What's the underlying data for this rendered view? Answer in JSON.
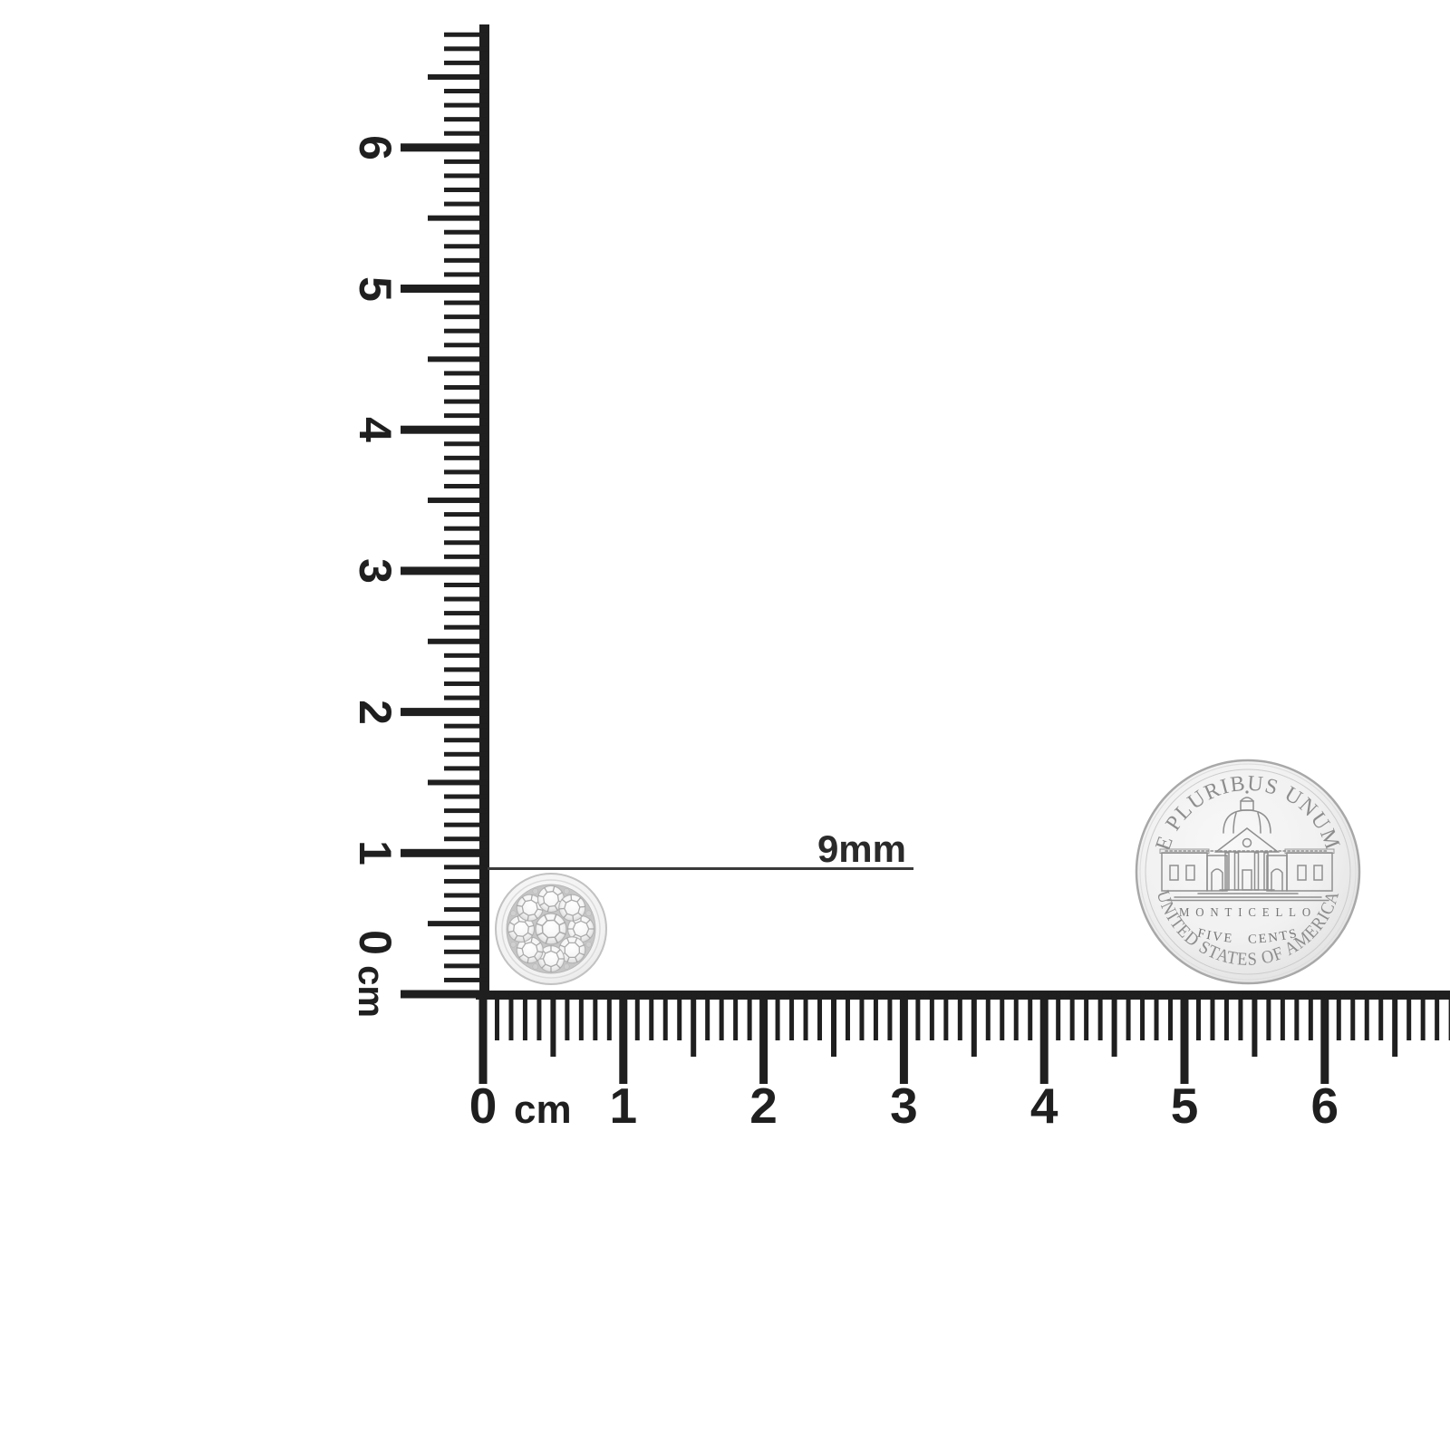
{
  "page": {
    "background": "#ffffff"
  },
  "rulers": {
    "vertical": {
      "labels": [
        "6",
        "5",
        "4",
        "3",
        "2",
        "1",
        "0"
      ],
      "unit": "cm"
    },
    "horizontal": {
      "labels": [
        "0",
        "1",
        "2",
        "3",
        "4",
        "5",
        "6"
      ],
      "unit": "cm"
    }
  },
  "measurement": {
    "label": "9mm"
  },
  "earring": {
    "icon": "diamond-cluster-stud-earring",
    "stone_count": 9
  },
  "coin": {
    "icon": "jefferson-nickel-reverse",
    "top_legend": "E PLURIBUS UNUM",
    "building_label": "MONTICELLO",
    "denomination": "FIVE CENTS",
    "bottom_legend": "UNITED STATES OF AMERICA"
  },
  "colors": {
    "ruler": "#1f1f1f",
    "measurement_line": "#3a3a3a",
    "coin_engraving": "#8d8d8d"
  }
}
